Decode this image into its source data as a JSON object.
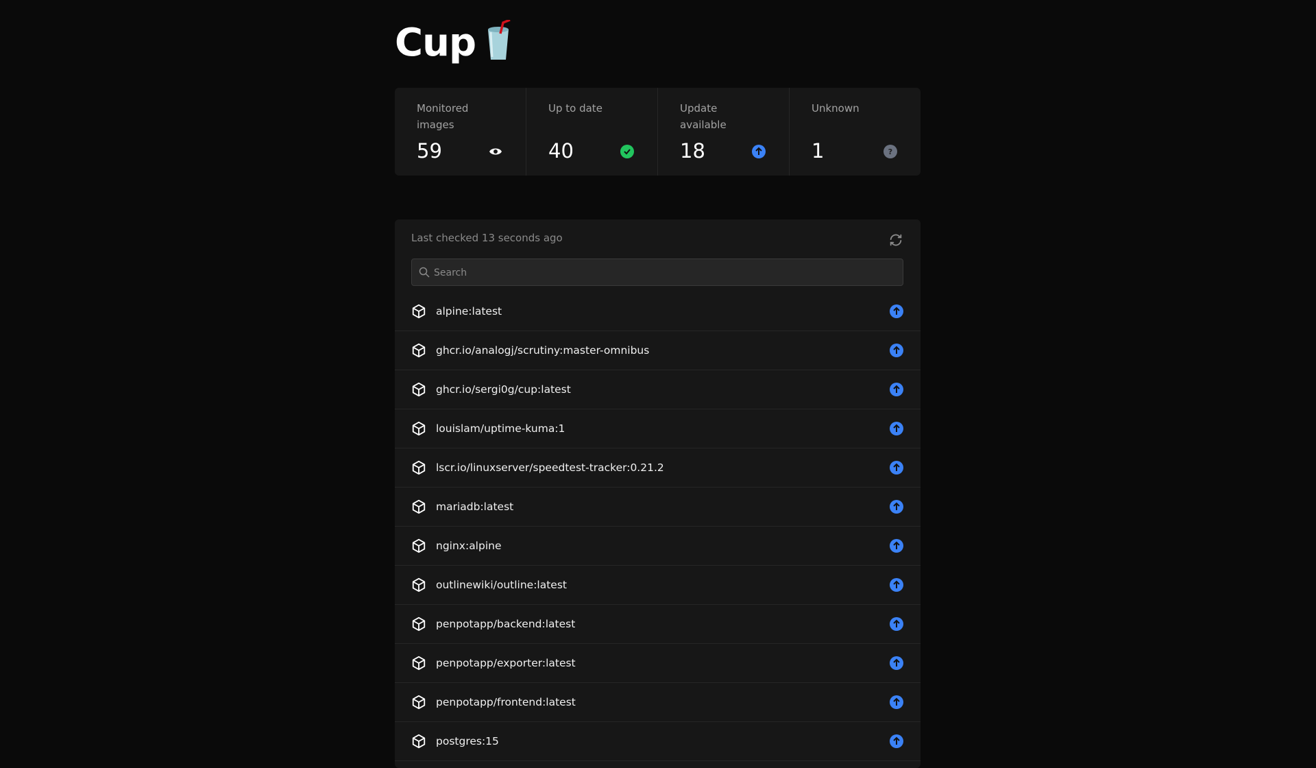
{
  "app": {
    "title": "Cup"
  },
  "stats": [
    {
      "label": "Monitored images",
      "value": "59",
      "icon": "eye-icon"
    },
    {
      "label": "Up to date",
      "value": "40",
      "icon": "check-circle-icon",
      "color": "#22c55e"
    },
    {
      "label": "Update available",
      "value": "18",
      "icon": "arrow-up-circle-icon",
      "color": "#3b82f6"
    },
    {
      "label": "Unknown",
      "value": "1",
      "icon": "question-circle-icon",
      "color": "#6b7280"
    }
  ],
  "panel": {
    "last_checked": "Last checked 13 seconds ago",
    "search_placeholder": "Search"
  },
  "images": [
    {
      "name": "alpine:latest",
      "status": "update-available"
    },
    {
      "name": "ghcr.io/analogj/scrutiny:master-omnibus",
      "status": "update-available"
    },
    {
      "name": "ghcr.io/sergi0g/cup:latest",
      "status": "update-available"
    },
    {
      "name": "louislam/uptime-kuma:1",
      "status": "update-available"
    },
    {
      "name": "lscr.io/linuxserver/speedtest-tracker:0.21.2",
      "status": "update-available"
    },
    {
      "name": "mariadb:latest",
      "status": "update-available"
    },
    {
      "name": "nginx:alpine",
      "status": "update-available"
    },
    {
      "name": "outlinewiki/outline:latest",
      "status": "update-available"
    },
    {
      "name": "penpotapp/backend:latest",
      "status": "update-available"
    },
    {
      "name": "penpotapp/exporter:latest",
      "status": "update-available"
    },
    {
      "name": "penpotapp/frontend:latest",
      "status": "update-available"
    },
    {
      "name": "postgres:15",
      "status": "update-available"
    }
  ]
}
